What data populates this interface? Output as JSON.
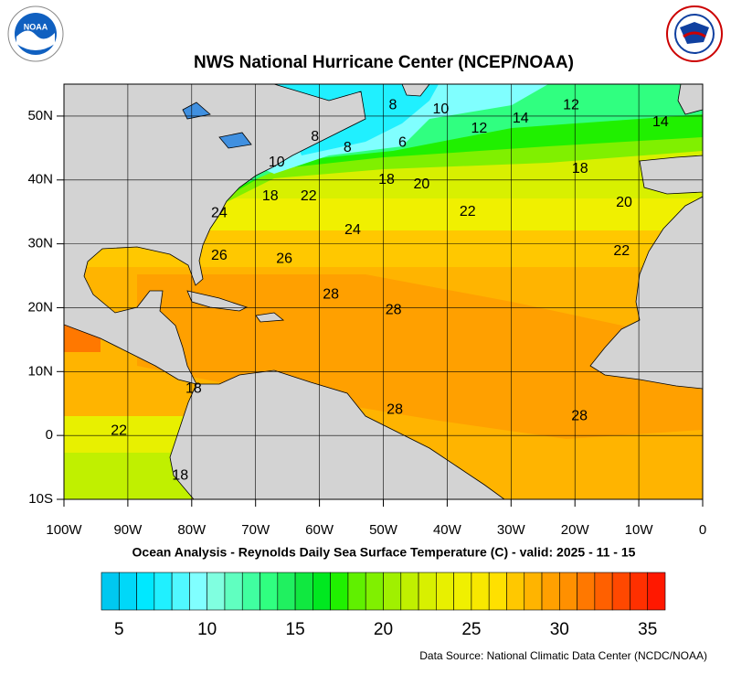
{
  "title": "NWS National Hurricane Center (NCEP/NOAA)",
  "subtitle": "Ocean Analysis - Reynolds Daily Sea Surface Temperature (C) - valid: 2025 - 11 - 15",
  "source": "Data Source: National Climatic Data Center (NCDC/NOAA)",
  "map": {
    "xlim": [
      -100,
      0
    ],
    "ylim": [
      -10,
      55
    ],
    "xticks": [
      {
        "value": -100,
        "label": "100W"
      },
      {
        "value": -90,
        "label": "90W"
      },
      {
        "value": -80,
        "label": "80W"
      },
      {
        "value": -70,
        "label": "70W"
      },
      {
        "value": -60,
        "label": "60W"
      },
      {
        "value": -50,
        "label": "50W"
      },
      {
        "value": -40,
        "label": "40W"
      },
      {
        "value": -30,
        "label": "30W"
      },
      {
        "value": -20,
        "label": "20W"
      },
      {
        "value": -10,
        "label": "10W"
      },
      0
    ],
    "yticks": [
      {
        "value": 50,
        "label": "50N"
      },
      {
        "value": 40,
        "label": "40N"
      },
      {
        "value": 30,
        "label": "30N"
      },
      {
        "value": 20,
        "label": "20N"
      },
      {
        "value": 10,
        "label": "10N"
      },
      0,
      {
        "value": -10,
        "label": "10S"
      }
    ],
    "grid": true,
    "contour_labels": [
      {
        "value": 8,
        "lon": -48.5,
        "lat": 51.7
      },
      {
        "value": 10,
        "lon": -41,
        "lat": 51
      },
      {
        "value": 12,
        "lon": -35,
        "lat": 48
      },
      {
        "value": 14,
        "lon": -28.5,
        "lat": 49.6
      },
      {
        "value": 12,
        "lon": -20.6,
        "lat": 51.7
      },
      {
        "value": 14,
        "lon": -6.6,
        "lat": 49
      },
      {
        "value": 8,
        "lon": -60.7,
        "lat": 46.7
      },
      {
        "value": 8,
        "lon": -55.6,
        "lat": 45
      },
      {
        "value": 6,
        "lon": -47,
        "lat": 45.8
      },
      {
        "value": 10,
        "lon": -66.7,
        "lat": 42.7
      },
      {
        "value": 18,
        "lon": -49.5,
        "lat": 40
      },
      {
        "value": 18,
        "lon": -19.2,
        "lat": 41.7
      },
      {
        "value": 20,
        "lon": -44,
        "lat": 39.3
      },
      {
        "value": 20,
        "lon": -12.3,
        "lat": 36.4
      },
      {
        "value": 18,
        "lon": -67.7,
        "lat": 37.4
      },
      {
        "value": 22,
        "lon": -61.7,
        "lat": 37.4
      },
      {
        "value": 22,
        "lon": -36.8,
        "lat": 35
      },
      {
        "value": 24,
        "lon": -75.7,
        "lat": 34.8
      },
      {
        "value": 24,
        "lon": -54.8,
        "lat": 32.1
      },
      {
        "value": 22,
        "lon": -12.7,
        "lat": 28.8
      },
      {
        "value": 26,
        "lon": -75.7,
        "lat": 28.1
      },
      {
        "value": 26,
        "lon": -65.5,
        "lat": 27.6
      },
      {
        "value": 28,
        "lon": -58.2,
        "lat": 22
      },
      {
        "value": 28,
        "lon": -48.4,
        "lat": 19.6
      },
      {
        "value": 28,
        "lon": -48.2,
        "lat": 4
      },
      {
        "value": 28,
        "lon": -19.3,
        "lat": 3
      },
      {
        "value": 18,
        "lon": -79.7,
        "lat": 7.3
      },
      {
        "value": 22,
        "lon": -91.4,
        "lat": 0.7
      },
      {
        "value": 18,
        "lon": -81.8,
        "lat": -6.3
      }
    ]
  },
  "colorbar": {
    "range": [
      4,
      36
    ],
    "ticks": [
      5,
      10,
      15,
      20,
      25,
      30,
      35
    ],
    "colors": [
      "#00c8f0",
      "#00d8f8",
      "#00e8ff",
      "#20f0ff",
      "#50f8ff",
      "#80ffff",
      "#80ffe0",
      "#60ffc0",
      "#40ffa0",
      "#30ff80",
      "#20f060",
      "#10e840",
      "#00e820",
      "#20f000",
      "#60f000",
      "#80f000",
      "#a0f000",
      "#c0f000",
      "#d8f000",
      "#e8f000",
      "#f0f000",
      "#f8e800",
      "#ffe000",
      "#ffc800",
      "#ffb400",
      "#ffa000",
      "#ff9000",
      "#ff7800",
      "#ff6000",
      "#ff4800",
      "#ff3000",
      "#ff1800"
    ]
  }
}
